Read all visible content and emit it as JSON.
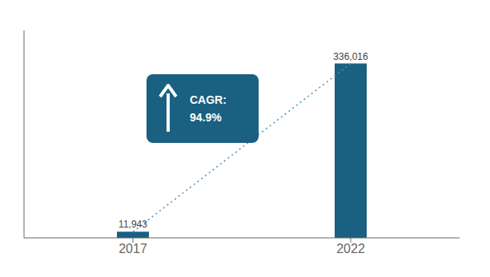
{
  "chart_data": {
    "type": "bar",
    "categories": [
      "2017",
      "2022"
    ],
    "series": [
      {
        "type": "bar",
        "color": "#1a6080",
        "values": [
          11943,
          336016
        ],
        "value_labels": [
          "11,943",
          "336,016"
        ]
      },
      {
        "type": "line",
        "color": "#4a90b8",
        "line_style": "dotted",
        "values": [
          11943,
          336016
        ]
      }
    ],
    "ylim": [
      0,
      400000
    ],
    "data_labels": true,
    "tick_labels": "x",
    "grid": false,
    "annotations": [
      {
        "text": "CAGR:",
        "color": "#1a6080"
      },
      {
        "text": "94.9%",
        "color": "#1a6080"
      }
    ]
  }
}
